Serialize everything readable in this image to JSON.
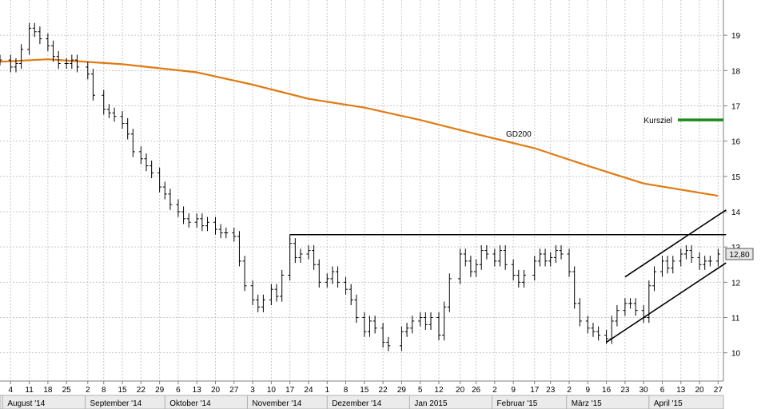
{
  "chart_data": {
    "type": "line",
    "title": "",
    "y_axis": {
      "min": 9.2,
      "max": 20.0,
      "ticks": [
        10,
        11,
        12,
        13,
        14,
        15,
        16,
        17,
        18,
        19
      ],
      "position": "right"
    },
    "x_axis": {
      "start": "2014-07-31",
      "end": "2015-04-29",
      "day_ticks": [
        {
          "date": "2014-08-04",
          "label": "4"
        },
        {
          "date": "2014-08-11",
          "label": "11"
        },
        {
          "date": "2014-08-18",
          "label": "18"
        },
        {
          "date": "2014-08-25",
          "label": "25"
        },
        {
          "date": "2014-09-02",
          "label": "2"
        },
        {
          "date": "2014-09-08",
          "label": "8"
        },
        {
          "date": "2014-09-15",
          "label": "15"
        },
        {
          "date": "2014-09-22",
          "label": "22"
        },
        {
          "date": "2014-09-29",
          "label": "29"
        },
        {
          "date": "2014-10-06",
          "label": "6"
        },
        {
          "date": "2014-10-13",
          "label": "13"
        },
        {
          "date": "2014-10-20",
          "label": "20"
        },
        {
          "date": "2014-10-27",
          "label": "27"
        },
        {
          "date": "2014-11-03",
          "label": "3"
        },
        {
          "date": "2014-11-10",
          "label": "10"
        },
        {
          "date": "2014-11-17",
          "label": "17"
        },
        {
          "date": "2014-11-24",
          "label": "24"
        },
        {
          "date": "2014-12-01",
          "label": "1"
        },
        {
          "date": "2014-12-08",
          "label": "8"
        },
        {
          "date": "2014-12-15",
          "label": "15"
        },
        {
          "date": "2014-12-22",
          "label": "22"
        },
        {
          "date": "2014-12-29",
          "label": "29"
        },
        {
          "date": "2015-01-05",
          "label": "5"
        },
        {
          "date": "2015-01-12",
          "label": "12"
        },
        {
          "date": "2015-01-20",
          "label": "20"
        },
        {
          "date": "2015-01-26",
          "label": "26"
        },
        {
          "date": "2015-02-02",
          "label": "2"
        },
        {
          "date": "2015-02-09",
          "label": "9"
        },
        {
          "date": "2015-02-17",
          "label": "17"
        },
        {
          "date": "2015-02-23",
          "label": "23"
        },
        {
          "date": "2015-03-02",
          "label": "2"
        },
        {
          "date": "2015-03-09",
          "label": "9"
        },
        {
          "date": "2015-03-16",
          "label": "16"
        },
        {
          "date": "2015-03-23",
          "label": "23"
        },
        {
          "date": "2015-03-30",
          "label": "30"
        },
        {
          "date": "2015-04-06",
          "label": "6"
        },
        {
          "date": "2015-04-13",
          "label": "13"
        },
        {
          "date": "2015-04-20",
          "label": "20"
        },
        {
          "date": "2015-04-27",
          "label": "27"
        }
      ],
      "month_labels": [
        {
          "date": "2014-08-01",
          "label": "August '14"
        },
        {
          "date": "2014-09-01",
          "label": "September '14"
        },
        {
          "date": "2014-10-01",
          "label": "Oktober '14"
        },
        {
          "date": "2014-11-01",
          "label": "November '14"
        },
        {
          "date": "2014-12-01",
          "label": "Dezember '14"
        },
        {
          "date": "2015-01-01",
          "label": "Jan 2015"
        },
        {
          "date": "2015-02-01",
          "label": "Februar '15"
        },
        {
          "date": "2015-03-01",
          "label": "März '15"
        },
        {
          "date": "2015-04-01",
          "label": "April '15"
        }
      ]
    },
    "price_series": [
      {
        "date": "2014-07-31",
        "value": 18.3
      },
      {
        "date": "2014-08-04",
        "value": 18.1
      },
      {
        "date": "2014-08-06",
        "value": 18.2
      },
      {
        "date": "2014-08-08",
        "value": 18.6
      },
      {
        "date": "2014-08-11",
        "value": 19.2
      },
      {
        "date": "2014-08-13",
        "value": 19.1
      },
      {
        "date": "2014-08-15",
        "value": 18.9
      },
      {
        "date": "2014-08-18",
        "value": 18.7
      },
      {
        "date": "2014-08-20",
        "value": 18.4
      },
      {
        "date": "2014-08-22",
        "value": 18.2
      },
      {
        "date": "2014-08-25",
        "value": 18.2
      },
      {
        "date": "2014-08-27",
        "value": 18.3
      },
      {
        "date": "2014-08-29",
        "value": 18.1
      },
      {
        "date": "2014-09-02",
        "value": 17.9
      },
      {
        "date": "2014-09-04",
        "value": 17.3
      },
      {
        "date": "2014-09-08",
        "value": 16.9
      },
      {
        "date": "2014-09-10",
        "value": 16.8
      },
      {
        "date": "2014-09-12",
        "value": 16.7
      },
      {
        "date": "2014-09-15",
        "value": 16.5
      },
      {
        "date": "2014-09-17",
        "value": 16.2
      },
      {
        "date": "2014-09-19",
        "value": 15.7
      },
      {
        "date": "2014-09-22",
        "value": 15.5
      },
      {
        "date": "2014-09-24",
        "value": 15.3
      },
      {
        "date": "2014-09-26",
        "value": 15.1
      },
      {
        "date": "2014-09-29",
        "value": 14.7
      },
      {
        "date": "2014-10-01",
        "value": 14.5
      },
      {
        "date": "2014-10-03",
        "value": 14.2
      },
      {
        "date": "2014-10-06",
        "value": 14.0
      },
      {
        "date": "2014-10-08",
        "value": 13.8
      },
      {
        "date": "2014-10-10",
        "value": 13.7
      },
      {
        "date": "2014-10-13",
        "value": 13.8
      },
      {
        "date": "2014-10-15",
        "value": 13.6
      },
      {
        "date": "2014-10-17",
        "value": 13.7
      },
      {
        "date": "2014-10-20",
        "value": 13.5
      },
      {
        "date": "2014-10-22",
        "value": 13.4
      },
      {
        "date": "2014-10-24",
        "value": 13.4
      },
      {
        "date": "2014-10-27",
        "value": 13.3
      },
      {
        "date": "2014-10-29",
        "value": 12.6
      },
      {
        "date": "2014-10-31",
        "value": 11.9
      },
      {
        "date": "2014-11-03",
        "value": 11.5
      },
      {
        "date": "2014-11-05",
        "value": 11.3
      },
      {
        "date": "2014-11-07",
        "value": 11.5
      },
      {
        "date": "2014-11-10",
        "value": 11.8
      },
      {
        "date": "2014-11-12",
        "value": 11.6
      },
      {
        "date": "2014-11-14",
        "value": 12.2
      },
      {
        "date": "2014-11-17",
        "value": 13.1
      },
      {
        "date": "2014-11-19",
        "value": 12.7
      },
      {
        "date": "2014-11-21",
        "value": 12.8
      },
      {
        "date": "2014-11-24",
        "value": 12.9
      },
      {
        "date": "2014-11-26",
        "value": 12.5
      },
      {
        "date": "2014-11-28",
        "value": 12.0
      },
      {
        "date": "2014-12-01",
        "value": 12.1
      },
      {
        "date": "2014-12-03",
        "value": 12.3
      },
      {
        "date": "2014-12-05",
        "value": 12.0
      },
      {
        "date": "2014-12-08",
        "value": 11.8
      },
      {
        "date": "2014-12-10",
        "value": 11.5
      },
      {
        "date": "2014-12-12",
        "value": 11.0
      },
      {
        "date": "2014-12-15",
        "value": 10.6
      },
      {
        "date": "2014-12-17",
        "value": 10.9
      },
      {
        "date": "2014-12-19",
        "value": 10.7
      },
      {
        "date": "2014-12-22",
        "value": 10.3
      },
      {
        "date": "2014-12-24",
        "value": 10.2
      },
      {
        "date": "2014-12-29",
        "value": 10.6
      },
      {
        "date": "2014-12-31",
        "value": 10.7
      },
      {
        "date": "2015-01-02",
        "value": 10.9
      },
      {
        "date": "2015-01-05",
        "value": 11.0
      },
      {
        "date": "2015-01-07",
        "value": 10.8
      },
      {
        "date": "2015-01-09",
        "value": 11.0
      },
      {
        "date": "2015-01-12",
        "value": 10.5
      },
      {
        "date": "2015-01-14",
        "value": 11.3
      },
      {
        "date": "2015-01-16",
        "value": 12.1
      },
      {
        "date": "2015-01-20",
        "value": 12.8
      },
      {
        "date": "2015-01-22",
        "value": 12.6
      },
      {
        "date": "2015-01-24",
        "value": 12.3
      },
      {
        "date": "2015-01-26",
        "value": 12.5
      },
      {
        "date": "2015-01-28",
        "value": 12.9
      },
      {
        "date": "2015-01-30",
        "value": 12.8
      },
      {
        "date": "2015-02-02",
        "value": 12.6
      },
      {
        "date": "2015-02-04",
        "value": 12.9
      },
      {
        "date": "2015-02-06",
        "value": 12.5
      },
      {
        "date": "2015-02-09",
        "value": 12.2
      },
      {
        "date": "2015-02-11",
        "value": 12.0
      },
      {
        "date": "2015-02-13",
        "value": 12.2
      },
      {
        "date": "2015-02-17",
        "value": 12.6
      },
      {
        "date": "2015-02-19",
        "value": 12.8
      },
      {
        "date": "2015-02-21",
        "value": 12.6
      },
      {
        "date": "2015-02-23",
        "value": 12.7
      },
      {
        "date": "2015-02-25",
        "value": 12.9
      },
      {
        "date": "2015-02-27",
        "value": 12.8
      },
      {
        "date": "2015-03-02",
        "value": 12.3
      },
      {
        "date": "2015-03-04",
        "value": 11.4
      },
      {
        "date": "2015-03-06",
        "value": 10.9
      },
      {
        "date": "2015-03-09",
        "value": 10.7
      },
      {
        "date": "2015-03-11",
        "value": 10.6
      },
      {
        "date": "2015-03-13",
        "value": 10.5
      },
      {
        "date": "2015-03-16",
        "value": 10.4
      },
      {
        "date": "2015-03-18",
        "value": 10.9
      },
      {
        "date": "2015-03-20",
        "value": 11.2
      },
      {
        "date": "2015-03-23",
        "value": 11.4
      },
      {
        "date": "2015-03-25",
        "value": 11.4
      },
      {
        "date": "2015-03-27",
        "value": 11.2
      },
      {
        "date": "2015-03-30",
        "value": 11.0
      },
      {
        "date": "2015-04-01",
        "value": 11.9
      },
      {
        "date": "2015-04-03",
        "value": 12.3
      },
      {
        "date": "2015-04-06",
        "value": 12.6
      },
      {
        "date": "2015-04-08",
        "value": 12.4
      },
      {
        "date": "2015-04-10",
        "value": 12.6
      },
      {
        "date": "2015-04-13",
        "value": 12.8
      },
      {
        "date": "2015-04-15",
        "value": 12.9
      },
      {
        "date": "2015-04-17",
        "value": 12.7
      },
      {
        "date": "2015-04-20",
        "value": 12.5
      },
      {
        "date": "2015-04-22",
        "value": 12.6
      },
      {
        "date": "2015-04-24",
        "value": 12.6
      },
      {
        "date": "2015-04-27",
        "value": 12.8
      }
    ],
    "gd200": {
      "label": "GD200",
      "color": "#e07b12",
      "points": [
        {
          "date": "2014-07-31",
          "value": 18.25
        },
        {
          "date": "2014-08-18",
          "value": 18.32
        },
        {
          "date": "2014-09-15",
          "value": 18.18
        },
        {
          "date": "2014-10-13",
          "value": 17.95
        },
        {
          "date": "2014-11-03",
          "value": 17.6
        },
        {
          "date": "2014-11-24",
          "value": 17.2
        },
        {
          "date": "2014-12-15",
          "value": 16.95
        },
        {
          "date": "2015-01-05",
          "value": 16.6
        },
        {
          "date": "2015-01-26",
          "value": 16.2
        },
        {
          "date": "2015-02-17",
          "value": 15.8
        },
        {
          "date": "2015-03-09",
          "value": 15.3
        },
        {
          "date": "2015-03-30",
          "value": 14.8
        },
        {
          "date": "2015-04-27",
          "value": 14.45
        }
      ]
    },
    "resistance_line": {
      "from": "2014-11-17",
      "to": "2015-04-30",
      "value": 13.35
    },
    "channel": {
      "upper": {
        "from_date": "2015-03-23",
        "from_value": 12.15,
        "to_date": "2015-04-30",
        "to_value": 14.05
      },
      "lower": {
        "from_date": "2015-03-16",
        "from_value": 10.3,
        "to_date": "2015-04-30",
        "to_value": 12.55
      }
    },
    "kursziel": {
      "label": "Kursziel",
      "value": 16.6,
      "color": "#1c8a1c"
    },
    "last_price": {
      "label": "12,80",
      "value": 12.8
    },
    "colors": {
      "price": "#000000",
      "grid": "#c8c8c8",
      "axis_box": "#ebebeb"
    }
  }
}
